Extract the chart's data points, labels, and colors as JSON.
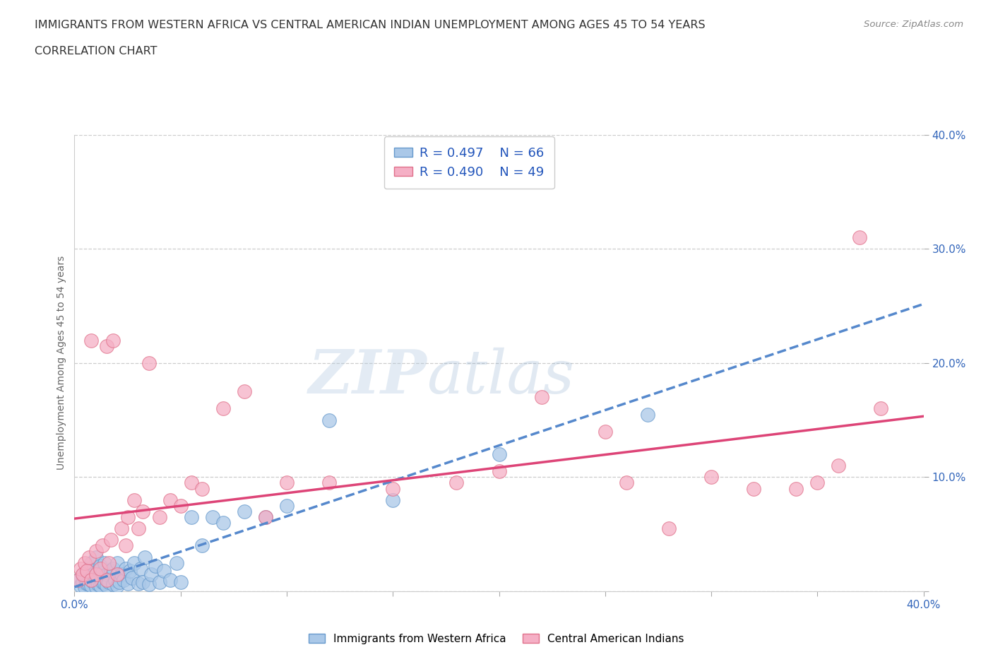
{
  "title_line1": "IMMIGRANTS FROM WESTERN AFRICA VS CENTRAL AMERICAN INDIAN UNEMPLOYMENT AMONG AGES 45 TO 54 YEARS",
  "title_line2": "CORRELATION CHART",
  "source": "Source: ZipAtlas.com",
  "ylabel": "Unemployment Among Ages 45 to 54 years",
  "xlim": [
    0.0,
    0.4
  ],
  "ylim": [
    0.0,
    0.4
  ],
  "blue_label": "Immigrants from Western Africa",
  "pink_label": "Central American Indians",
  "blue_R": "R = 0.497",
  "blue_N": "N = 66",
  "pink_R": "R = 0.490",
  "pink_N": "N = 49",
  "blue_fill_color": "#aac8e8",
  "pink_fill_color": "#f5afc5",
  "blue_edge_color": "#6699cc",
  "pink_edge_color": "#e0708a",
  "blue_line_color": "#5588cc",
  "pink_line_color": "#dd4477",
  "legend_text_color": "#2255bb",
  "axis_tick_color": "#3366bb",
  "title_color": "#333333",
  "grid_color": "#cccccc",
  "background_color": "#ffffff",
  "blue_scatter_x": [
    0.002,
    0.003,
    0.004,
    0.004,
    0.005,
    0.005,
    0.006,
    0.006,
    0.007,
    0.007,
    0.008,
    0.008,
    0.008,
    0.009,
    0.009,
    0.01,
    0.01,
    0.01,
    0.011,
    0.011,
    0.012,
    0.012,
    0.013,
    0.013,
    0.014,
    0.014,
    0.015,
    0.015,
    0.016,
    0.017,
    0.018,
    0.018,
    0.019,
    0.02,
    0.02,
    0.021,
    0.022,
    0.023,
    0.024,
    0.025,
    0.026,
    0.027,
    0.028,
    0.03,
    0.031,
    0.032,
    0.033,
    0.035,
    0.036,
    0.038,
    0.04,
    0.042,
    0.045,
    0.048,
    0.05,
    0.055,
    0.06,
    0.065,
    0.07,
    0.08,
    0.09,
    0.1,
    0.12,
    0.15,
    0.2,
    0.27
  ],
  "blue_scatter_y": [
    0.01,
    0.005,
    0.008,
    0.015,
    0.004,
    0.012,
    0.007,
    0.018,
    0.006,
    0.02,
    0.005,
    0.01,
    0.025,
    0.008,
    0.015,
    0.004,
    0.012,
    0.03,
    0.006,
    0.018,
    0.005,
    0.022,
    0.008,
    0.016,
    0.007,
    0.025,
    0.005,
    0.015,
    0.008,
    0.018,
    0.006,
    0.02,
    0.01,
    0.005,
    0.025,
    0.008,
    0.015,
    0.01,
    0.02,
    0.007,
    0.018,
    0.012,
    0.025,
    0.007,
    0.02,
    0.008,
    0.03,
    0.006,
    0.015,
    0.022,
    0.008,
    0.018,
    0.01,
    0.025,
    0.008,
    0.065,
    0.04,
    0.065,
    0.06,
    0.07,
    0.065,
    0.075,
    0.15,
    0.08,
    0.12,
    0.155
  ],
  "pink_scatter_x": [
    0.002,
    0.003,
    0.004,
    0.005,
    0.006,
    0.007,
    0.008,
    0.008,
    0.01,
    0.01,
    0.012,
    0.013,
    0.015,
    0.015,
    0.016,
    0.017,
    0.018,
    0.02,
    0.022,
    0.024,
    0.025,
    0.028,
    0.03,
    0.032,
    0.035,
    0.04,
    0.045,
    0.05,
    0.055,
    0.06,
    0.07,
    0.08,
    0.09,
    0.1,
    0.12,
    0.15,
    0.18,
    0.2,
    0.22,
    0.25,
    0.26,
    0.28,
    0.3,
    0.32,
    0.34,
    0.35,
    0.36,
    0.37,
    0.38
  ],
  "pink_scatter_y": [
    0.01,
    0.02,
    0.015,
    0.025,
    0.018,
    0.03,
    0.01,
    0.22,
    0.015,
    0.035,
    0.02,
    0.04,
    0.01,
    0.215,
    0.025,
    0.045,
    0.22,
    0.015,
    0.055,
    0.04,
    0.065,
    0.08,
    0.055,
    0.07,
    0.2,
    0.065,
    0.08,
    0.075,
    0.095,
    0.09,
    0.16,
    0.175,
    0.065,
    0.095,
    0.095,
    0.09,
    0.095,
    0.105,
    0.17,
    0.14,
    0.095,
    0.055,
    0.1,
    0.09,
    0.09,
    0.095,
    0.11,
    0.31,
    0.16
  ]
}
